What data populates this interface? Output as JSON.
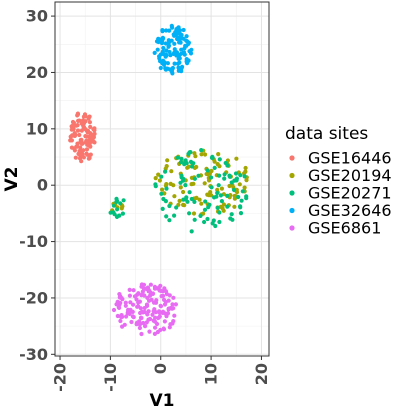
{
  "chart_data": {
    "type": "scatter",
    "title": "",
    "xlabel": "V1",
    "ylabel": "V2",
    "xlim": [
      -21,
      21.5
    ],
    "ylim": [
      -30.3,
      32.5
    ],
    "xticks": [
      -20,
      -10,
      0,
      10,
      20
    ],
    "yticks": [
      -30,
      -20,
      -10,
      0,
      10,
      20,
      30
    ],
    "xtick_labels": [
      "-20",
      "-10",
      "0",
      "10",
      "20"
    ],
    "ytick_labels": [
      "-30",
      "-20",
      "-10",
      "0",
      "10",
      "20",
      "30"
    ],
    "grid": true,
    "legend_title": "data sites",
    "legend_position": "right",
    "series": [
      {
        "name": "GSE16446",
        "color": "#F8766D",
        "clusters": [
          {
            "cx": -15.5,
            "cy": 8.5,
            "rx": 2.6,
            "ry": 4.6,
            "n": 110
          }
        ]
      },
      {
        "name": "GSE20194",
        "color": "#A3A500",
        "clusters": [
          {
            "cx": 8,
            "cy": 0.5,
            "rx": 10.5,
            "ry": 6.0,
            "n": 110
          },
          {
            "cx": -9,
            "cy": -3.5,
            "rx": 1.6,
            "ry": 1.2,
            "n": 8
          }
        ]
      },
      {
        "name": "GSE20271",
        "color": "#00BF7D",
        "clusters": [
          {
            "cx": 8,
            "cy": -1,
            "rx": 9.5,
            "ry": 7.5,
            "n": 100
          },
          {
            "cx": -8.5,
            "cy": -4,
            "rx": 1.8,
            "ry": 2.0,
            "n": 14
          }
        ]
      },
      {
        "name": "GSE32646",
        "color": "#00B0F6",
        "clusters": [
          {
            "cx": 2.5,
            "cy": 24,
            "rx": 3.8,
            "ry": 4.5,
            "n": 115
          }
        ]
      },
      {
        "name": "GSE6861",
        "color": "#E76BF3",
        "clusters": [
          {
            "cx": -3,
            "cy": -22,
            "rx": 6.5,
            "ry": 4.8,
            "n": 150
          }
        ]
      }
    ]
  }
}
